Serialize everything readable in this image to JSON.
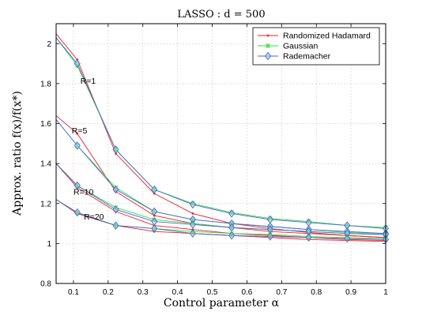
{
  "chart_data": {
    "type": "line",
    "title": "LASSO : d = 500",
    "xlabel": "Control parameter α",
    "ylabel": "Approx. ratio f(x)/f(x*)",
    "xlim": [
      0.05,
      1.0
    ],
    "ylim": [
      0.8,
      2.1
    ],
    "xticks": [
      "0.1",
      "0.2",
      "0.3",
      "0.4",
      "0.5",
      "0.6",
      "0.7",
      "0.8",
      "0.9",
      "1"
    ],
    "yticks": [
      "0.8",
      "1",
      "1.2",
      "1.4",
      "1.6",
      "1.8",
      "2"
    ],
    "grid": true,
    "legend_position": "top-right",
    "x": [
      0.05,
      0.111,
      0.222,
      0.333,
      0.444,
      0.556,
      0.667,
      0.778,
      0.889,
      1.0
    ],
    "series": [
      {
        "name": "Randomized Hadamard",
        "color": "#e8202a",
        "marker": "dot",
        "groups": [
          {
            "label": "R=1",
            "values": [
              2.05,
              1.92,
              1.45,
              1.25,
              1.15,
              1.1,
              1.075,
              1.055,
              1.04,
              1.03
            ]
          },
          {
            "label": "R=5",
            "values": [
              1.64,
              1.55,
              1.26,
              1.14,
              1.1,
              1.08,
              1.06,
              1.05,
              1.04,
              1.03
            ]
          },
          {
            "label": "R=10",
            "values": [
              1.4,
              1.28,
              1.16,
              1.09,
              1.07,
              1.05,
              1.04,
              1.03,
              1.02,
              1.015
            ]
          },
          {
            "label": "R=20",
            "values": [
              1.22,
              1.15,
              1.09,
              1.06,
              1.05,
              1.04,
              1.03,
              1.02,
              1.015,
              1.01
            ]
          }
        ]
      },
      {
        "name": "Gaussian",
        "color": "#33dd33",
        "marker": "star",
        "groups": [
          {
            "label": "R=1",
            "values": [
              2.03,
              1.89,
              1.47,
              1.27,
              1.2,
              1.155,
              1.125,
              1.11,
              1.09,
              1.08
            ]
          },
          {
            "label": "R=5",
            "values": [
              1.62,
              1.49,
              1.28,
              1.16,
              1.12,
              1.1,
              1.085,
              1.07,
              1.055,
              1.05
            ]
          },
          {
            "label": "R=10",
            "values": [
              1.4,
              1.29,
              1.18,
              1.12,
              1.1,
              1.08,
              1.07,
              1.06,
              1.05,
              1.045
            ]
          },
          {
            "label": "R=20",
            "values": [
              1.22,
              1.155,
              1.09,
              1.075,
              1.06,
              1.05,
              1.045,
              1.035,
              1.03,
              1.025
            ]
          }
        ]
      },
      {
        "name": "Rademacher",
        "color": "#4a64d8",
        "marker": "diamond",
        "groups": [
          {
            "label": "R=1",
            "values": [
              2.03,
              1.9,
              1.47,
              1.27,
              1.195,
              1.15,
              1.12,
              1.105,
              1.09,
              1.075
            ]
          },
          {
            "label": "R=5",
            "values": [
              1.62,
              1.49,
              1.27,
              1.16,
              1.12,
              1.1,
              1.085,
              1.07,
              1.06,
              1.05
            ]
          },
          {
            "label": "R=10",
            "values": [
              1.4,
              1.29,
              1.17,
              1.11,
              1.095,
              1.08,
              1.07,
              1.06,
              1.05,
              1.045
            ]
          },
          {
            "label": "R=20",
            "values": [
              1.22,
              1.155,
              1.09,
              1.075,
              1.05,
              1.04,
              1.035,
              1.03,
              1.025,
              1.02
            ]
          }
        ]
      }
    ],
    "annotations": [
      {
        "text": "R=1",
        "x": 0.12,
        "y": 1.8
      },
      {
        "text": "R=5",
        "x": 0.095,
        "y": 1.55
      },
      {
        "text": "R=10",
        "x": 0.1,
        "y": 1.245
      },
      {
        "text": "R=20",
        "x": 0.13,
        "y": 1.12
      }
    ]
  }
}
